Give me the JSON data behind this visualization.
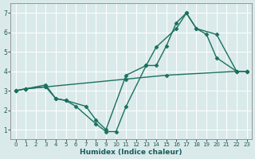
{
  "bg_color": "#daeaea",
  "grid_color": "#ffffff",
  "line_color": "#1a7060",
  "line_width": 1.0,
  "marker": "D",
  "marker_size": 2.5,
  "xlabel": "Humidex (Indice chaleur)",
  "xlim": [
    -0.5,
    23.5
  ],
  "ylim": [
    0.5,
    7.5
  ],
  "xticks": [
    0,
    1,
    2,
    3,
    4,
    5,
    6,
    7,
    8,
    9,
    10,
    11,
    12,
    13,
    14,
    15,
    16,
    17,
    18,
    19,
    20,
    21,
    22,
    23
  ],
  "yticks": [
    1,
    2,
    3,
    4,
    5,
    6,
    7
  ],
  "series": [
    {
      "x": [
        0,
        1,
        3,
        11,
        15,
        22,
        23
      ],
      "y": [
        3.0,
        3.1,
        3.2,
        3.6,
        3.8,
        4.0,
        4.0
      ]
    },
    {
      "x": [
        0,
        1,
        3,
        4,
        5,
        6,
        8,
        9,
        10,
        11,
        13,
        14,
        15,
        16,
        17,
        18,
        19,
        20,
        22,
        23
      ],
      "y": [
        3.0,
        3.1,
        3.2,
        2.6,
        2.5,
        2.2,
        1.3,
        0.9,
        0.9,
        2.2,
        4.3,
        4.3,
        5.3,
        6.5,
        7.0,
        6.2,
        5.9,
        4.7,
        4.0,
        4.0
      ]
    },
    {
      "x": [
        0,
        1,
        3,
        4,
        5,
        7,
        8,
        9,
        11,
        13,
        14,
        16,
        17,
        18,
        20,
        22,
        23
      ],
      "y": [
        3.0,
        3.1,
        3.3,
        2.6,
        2.5,
        2.2,
        1.5,
        1.0,
        3.8,
        4.3,
        5.25,
        6.2,
        7.0,
        6.2,
        5.9,
        4.0,
        4.0
      ]
    }
  ]
}
